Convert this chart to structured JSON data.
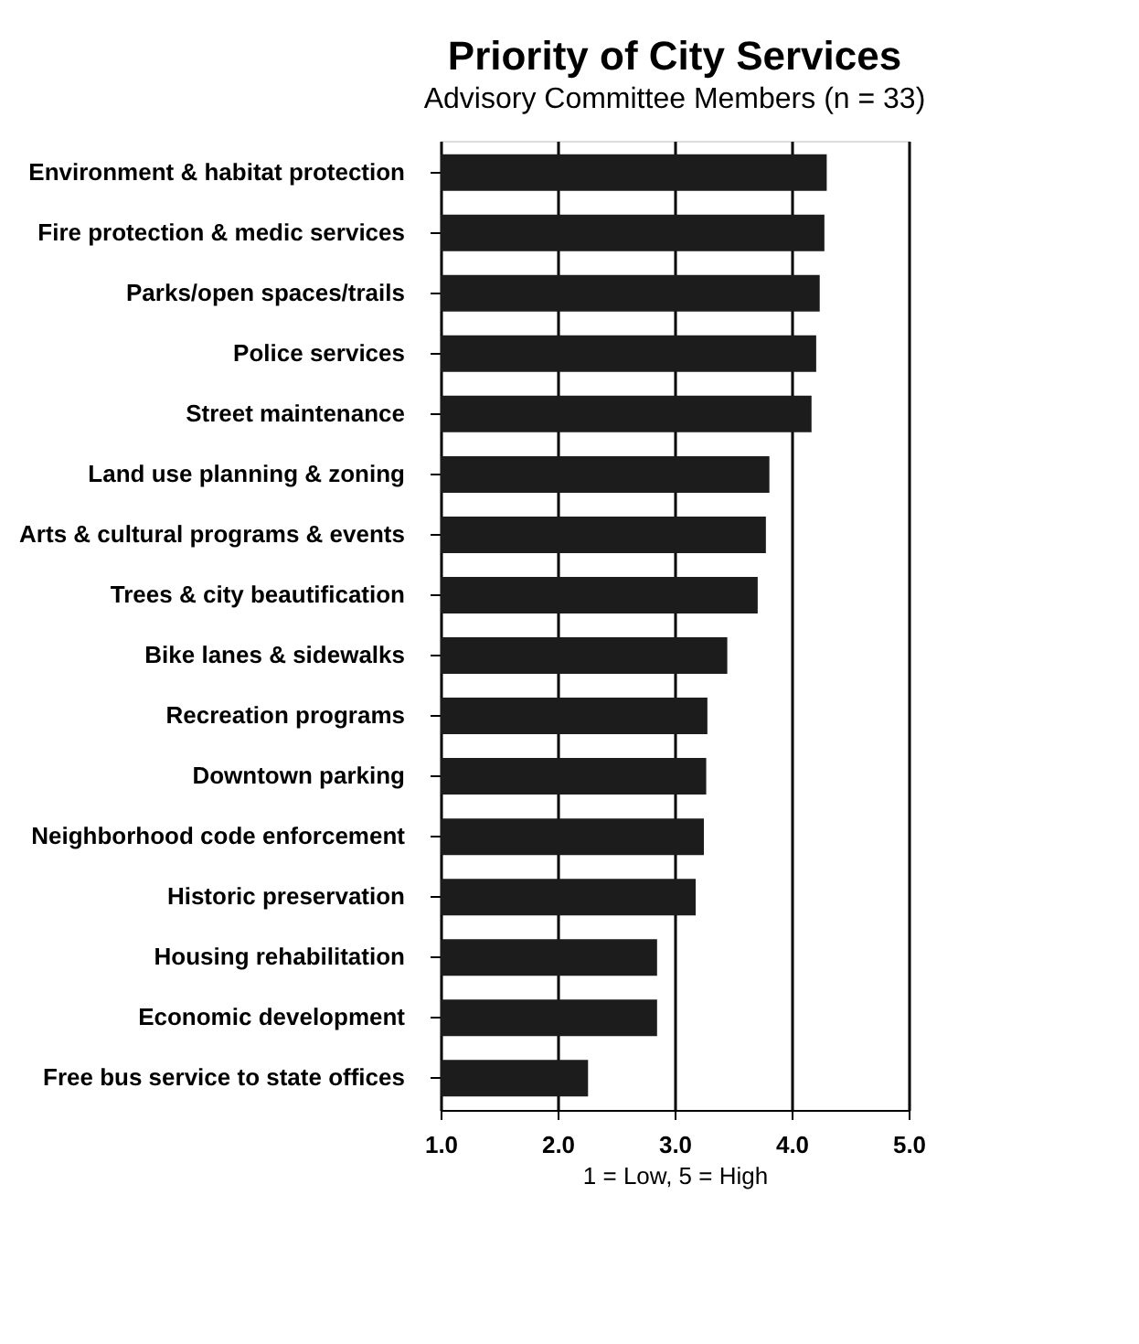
{
  "chart_data": {
    "type": "bar",
    "orientation": "horizontal",
    "title": "Priority of City Services",
    "subtitle": "Advisory Committee Members (n = 33)",
    "xlabel": "1 = Low,  5 = High",
    "categories": [
      "Environment & habitat protection",
      "Fire protection & medic services",
      "Parks/open spaces/trails",
      "Police services",
      "Street maintenance",
      "Land use planning & zoning",
      "Arts & cultural programs & events",
      "Trees & city beautification",
      "Bike lanes & sidewalks",
      "Recreation programs",
      "Downtown parking",
      "Neighborhood code enforcement",
      "Historic preservation",
      "Housing rehabilitation",
      "Economic development",
      "Free bus service to state offices"
    ],
    "values": [
      4.3,
      4.28,
      4.24,
      4.21,
      4.17,
      3.81,
      3.78,
      3.71,
      3.45,
      3.28,
      3.27,
      3.25,
      3.18,
      2.85,
      2.85,
      2.26
    ],
    "color": "#1c1c1c",
    "xlim": [
      1,
      5
    ],
    "xticks": [
      {
        "value": 1,
        "label": "1.0"
      },
      {
        "value": 2,
        "label": "2.0"
      },
      {
        "value": 3,
        "label": "3.0"
      },
      {
        "value": 4,
        "label": "4.0"
      },
      {
        "value": 5,
        "label": "5.0"
      }
    ],
    "grid": "x"
  }
}
